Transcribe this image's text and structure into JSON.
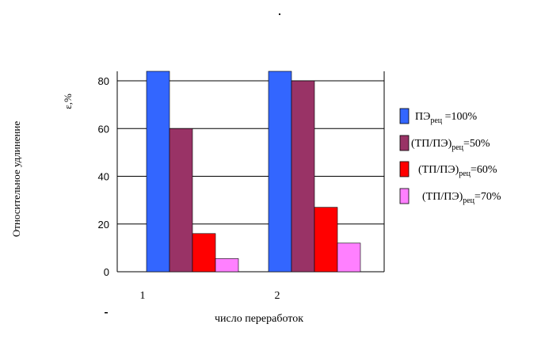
{
  "chart_data": {
    "type": "bar",
    "ylabel_outer": "Относительное удлинение",
    "ylabel_unit": "ε,%",
    "xlabel": "число переработок",
    "categories": [
      "1",
      "2"
    ],
    "ylim": [
      0,
      84
    ],
    "yticks": [
      "0",
      "20",
      "40",
      "60",
      "80"
    ],
    "grid": true,
    "legend_position": "right",
    "series": [
      {
        "name": "ПЭрец =100%",
        "name_main": "ПЭ",
        "name_sub": "рец",
        "name_tail": " =100%",
        "color": "#3366ff",
        "values": [
          84,
          84
        ]
      },
      {
        "name": "(ТП/ПЭ)рец=50%",
        "name_main": "(ТП/ПЭ)",
        "name_sub": "рец",
        "name_tail": "=50%",
        "color": "#993366",
        "values": [
          60,
          80
        ]
      },
      {
        "name": "(ТП/ПЭ)рец=60%",
        "name_main": "(ТП/ПЭ)",
        "name_sub": "рец",
        "name_tail": "=60%",
        "color": "#ff0000",
        "values": [
          16,
          27
        ]
      },
      {
        "name": "(ТП/ПЭ)рец=70%",
        "name_main": "(ТП/ПЭ)",
        "name_sub": "рец",
        "name_tail": "=70%",
        "color": "#ff80ff",
        "values": [
          5.5,
          12
        ]
      }
    ]
  }
}
